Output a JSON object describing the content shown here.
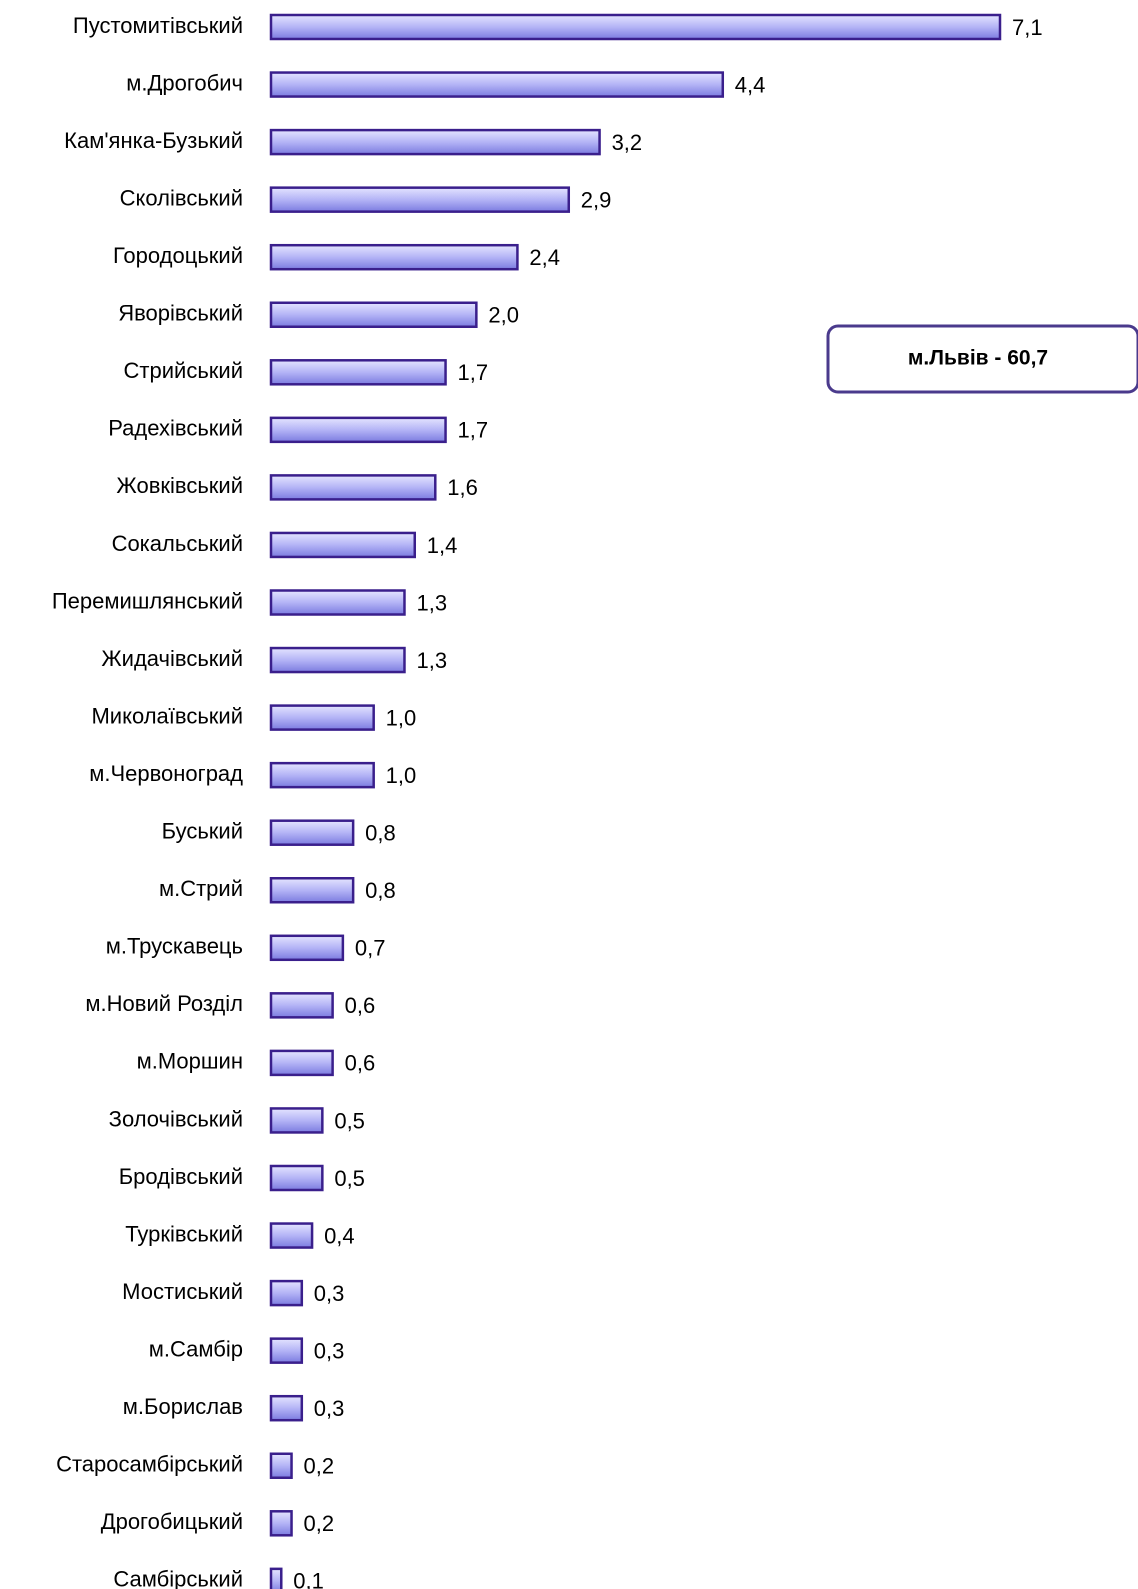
{
  "chart_data": {
    "type": "bar",
    "orientation": "horizontal",
    "color": "#9a9af0",
    "annotation": "м.Львів - 60,7",
    "categories": [
      "Пустомитівський",
      "м.Дрогобич",
      "Кам'янка-Бузький",
      "Сколівський",
      "Городоцький",
      "Яворівський",
      "Стрийський",
      "Радехівський",
      "Жовківський",
      "Сокальський",
      "Перемишлянський",
      "Жидачівський",
      "Миколаївський",
      "м.Червоноград",
      "Буський",
      "м.Стрий",
      "м.Трускавець",
      "м.Новий Розділ",
      "м.Моршин",
      "Золочівський",
      "Бродівський",
      "Турківський",
      "Мостиський",
      "м.Самбір",
      "м.Борислав",
      "Старосамбірський",
      "Дрогобицький",
      "Самбірський"
    ],
    "values": [
      7.1,
      4.4,
      3.2,
      2.9,
      2.4,
      2.0,
      1.7,
      1.7,
      1.6,
      1.4,
      1.3,
      1.3,
      1.0,
      1.0,
      0.8,
      0.8,
      0.7,
      0.6,
      0.6,
      0.5,
      0.5,
      0.4,
      0.3,
      0.3,
      0.3,
      0.2,
      0.2,
      0.1
    ],
    "value_labels": [
      "7,1",
      "4,4",
      "3,2",
      "2,9",
      "2,4",
      "2,0",
      "1,7",
      "1,7",
      "1,6",
      "1,4",
      "1,3",
      "1,3",
      "1,0",
      "1,0",
      "0,8",
      "0,8",
      "0,7",
      "0,6",
      "0,6",
      "0,5",
      "0,5",
      "0,4",
      "0,3",
      "0,3",
      "0,3",
      "0,2",
      "0,2",
      "0,1"
    ]
  }
}
